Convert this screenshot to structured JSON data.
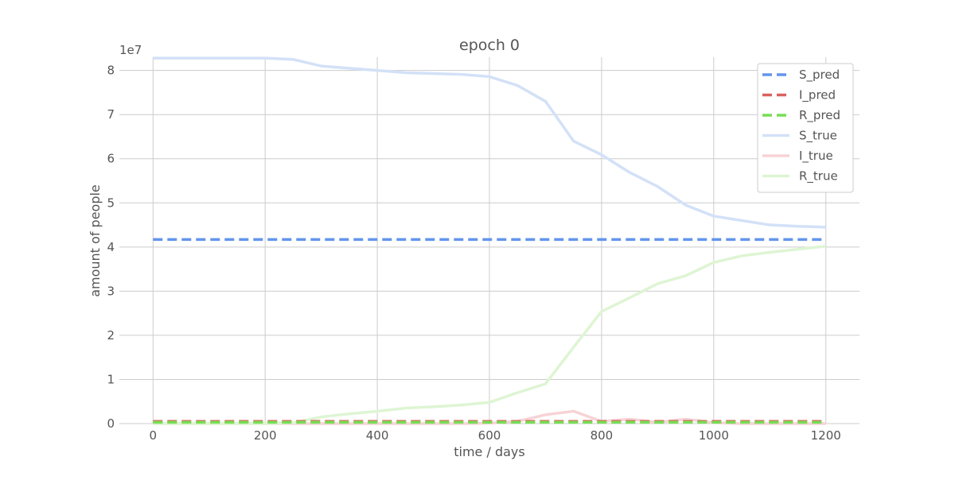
{
  "chart_data": {
    "type": "line",
    "title": "epoch 0",
    "x_label": "time / days",
    "y_label": "amount of people",
    "y_offset_label": "1e7",
    "x": [
      0,
      50,
      100,
      150,
      200,
      250,
      300,
      350,
      400,
      450,
      500,
      550,
      600,
      650,
      700,
      750,
      800,
      850,
      900,
      950,
      1000,
      1050,
      1100,
      1150,
      1200
    ],
    "series": [
      {
        "name": "S_pred",
        "color": "#6495ed",
        "dashed": true,
        "values": [
          4.17,
          4.17,
          4.17,
          4.17,
          4.17,
          4.17,
          4.17,
          4.17,
          4.17,
          4.17,
          4.17,
          4.17,
          4.17,
          4.17,
          4.17,
          4.17,
          4.17,
          4.17,
          4.17,
          4.17,
          4.17,
          4.17,
          4.17,
          4.17,
          4.17
        ]
      },
      {
        "name": "I_pred",
        "color": "#d9625e",
        "dashed": true,
        "values": [
          0.05,
          0.05,
          0.05,
          0.05,
          0.05,
          0.05,
          0.05,
          0.05,
          0.05,
          0.05,
          0.05,
          0.05,
          0.05,
          0.05,
          0.05,
          0.05,
          0.05,
          0.05,
          0.05,
          0.05,
          0.05,
          0.05,
          0.05,
          0.05,
          0.05
        ]
      },
      {
        "name": "R_pred",
        "color": "#77dd55",
        "dashed": true,
        "values": [
          0.03,
          0.03,
          0.03,
          0.03,
          0.03,
          0.03,
          0.03,
          0.03,
          0.03,
          0.03,
          0.03,
          0.03,
          0.03,
          0.03,
          0.03,
          0.03,
          0.03,
          0.03,
          0.03,
          0.03,
          0.03,
          0.03,
          0.03,
          0.03,
          0.03
        ]
      },
      {
        "name": "S_true",
        "color": "#d3e1f7",
        "dashed": false,
        "values": [
          8.28,
          8.28,
          8.28,
          8.28,
          8.28,
          8.25,
          8.1,
          8.05,
          8.0,
          7.95,
          7.93,
          7.91,
          7.86,
          7.66,
          7.3,
          6.4,
          6.09,
          5.69,
          5.37,
          4.95,
          4.7,
          4.6,
          4.5,
          4.47,
          4.45
        ]
      },
      {
        "name": "I_true",
        "color": "#f7d3d6",
        "dashed": false,
        "values": [
          0,
          0,
          0,
          0,
          0,
          0,
          0,
          0,
          0,
          0,
          0,
          0,
          0.01,
          0.05,
          0.2,
          0.28,
          0.05,
          0.1,
          0.03,
          0.1,
          0.02,
          0,
          0,
          0,
          0
        ]
      },
      {
        "name": "R_true",
        "color": "#def5d3",
        "dashed": false,
        "values": [
          0,
          0,
          0,
          0,
          0,
          0.02,
          0.15,
          0.22,
          0.28,
          0.35,
          0.38,
          0.42,
          0.48,
          0.7,
          0.9,
          1.73,
          2.54,
          2.85,
          3.17,
          3.35,
          3.65,
          3.8,
          3.88,
          3.95,
          4.02
        ]
      }
    ],
    "xlim": [
      -60,
      1260
    ],
    "ylim": [
      0,
      8.3
    ],
    "xticks": [
      0,
      200,
      400,
      600,
      800,
      1000,
      1200
    ],
    "yticks": [
      0,
      1,
      2,
      3,
      4,
      5,
      6,
      7,
      8
    ],
    "grid": true,
    "legend": "upper-right"
  }
}
